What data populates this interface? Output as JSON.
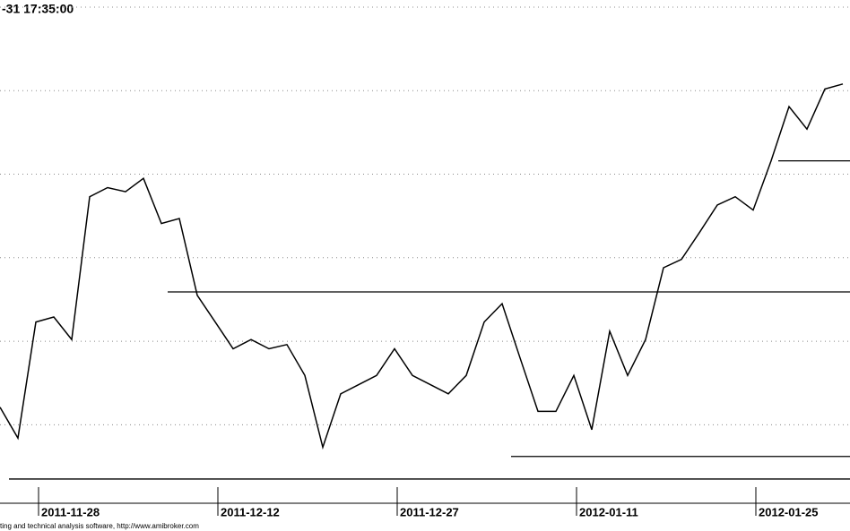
{
  "chart_data": {
    "type": "line",
    "title": "-31 17:35:00",
    "footer": "ting and technical analysis software, http://www.amibroker.com",
    "x": [
      -2.15,
      -1.15,
      -0.15,
      0.85,
      1.85,
      2.85,
      3.85,
      4.85,
      5.85,
      6.85,
      7.85,
      8.85,
      9.85,
      10.85,
      11.85,
      12.85,
      13.85,
      14.85,
      15.85,
      16.85,
      17.85,
      18.85,
      19.85,
      20.85,
      21.85,
      22.85,
      23.85,
      24.85,
      25.85,
      26.85,
      27.85,
      28.85,
      29.85,
      30.85,
      31.85,
      32.85,
      33.85,
      34.85,
      35.85,
      36.85,
      37.85,
      38.85,
      39.85,
      40.85,
      41.85,
      42.85,
      43.85,
      44.85
    ],
    "values": [
      1.21,
      0.84,
      2.23,
      2.29,
      2.02,
      3.73,
      3.84,
      3.79,
      3.95,
      3.41,
      3.47,
      2.55,
      2.23,
      1.91,
      2.02,
      1.91,
      1.96,
      1.59,
      0.73,
      1.37,
      1.48,
      1.59,
      1.91,
      1.59,
      1.48,
      1.37,
      1.59,
      2.23,
      2.45,
      1.8,
      1.16,
      1.16,
      1.59,
      0.94,
      2.12,
      1.59,
      2.02,
      2.88,
      2.98,
      3.3,
      3.63,
      3.73,
      3.57,
      4.16,
      4.81,
      4.54,
      5.02,
      5.08
    ],
    "color": "#000000",
    "xlim": [
      -2.15,
      45.25
    ],
    "ylim": [
      0.06,
      6
    ],
    "xticks": [
      {
        "value": 0,
        "label": "2011-11-28"
      },
      {
        "value": 10,
        "label": "2011-12-12"
      },
      {
        "value": 20,
        "label": "2011-12-27"
      },
      {
        "value": 30,
        "label": "2012-01-11"
      },
      {
        "value": 40,
        "label": "2012-01-25"
      }
    ],
    "yticks": [
      1,
      2,
      3,
      4,
      5,
      6
    ],
    "grid": true,
    "hlines": [
      {
        "value": 0.35,
        "x_start": -1.65
      },
      {
        "value": 2.59,
        "x_start": 7.2
      },
      {
        "value": 0.62,
        "x_start": 26.35
      },
      {
        "value": 4.16,
        "x_start": 41.25
      }
    ]
  }
}
